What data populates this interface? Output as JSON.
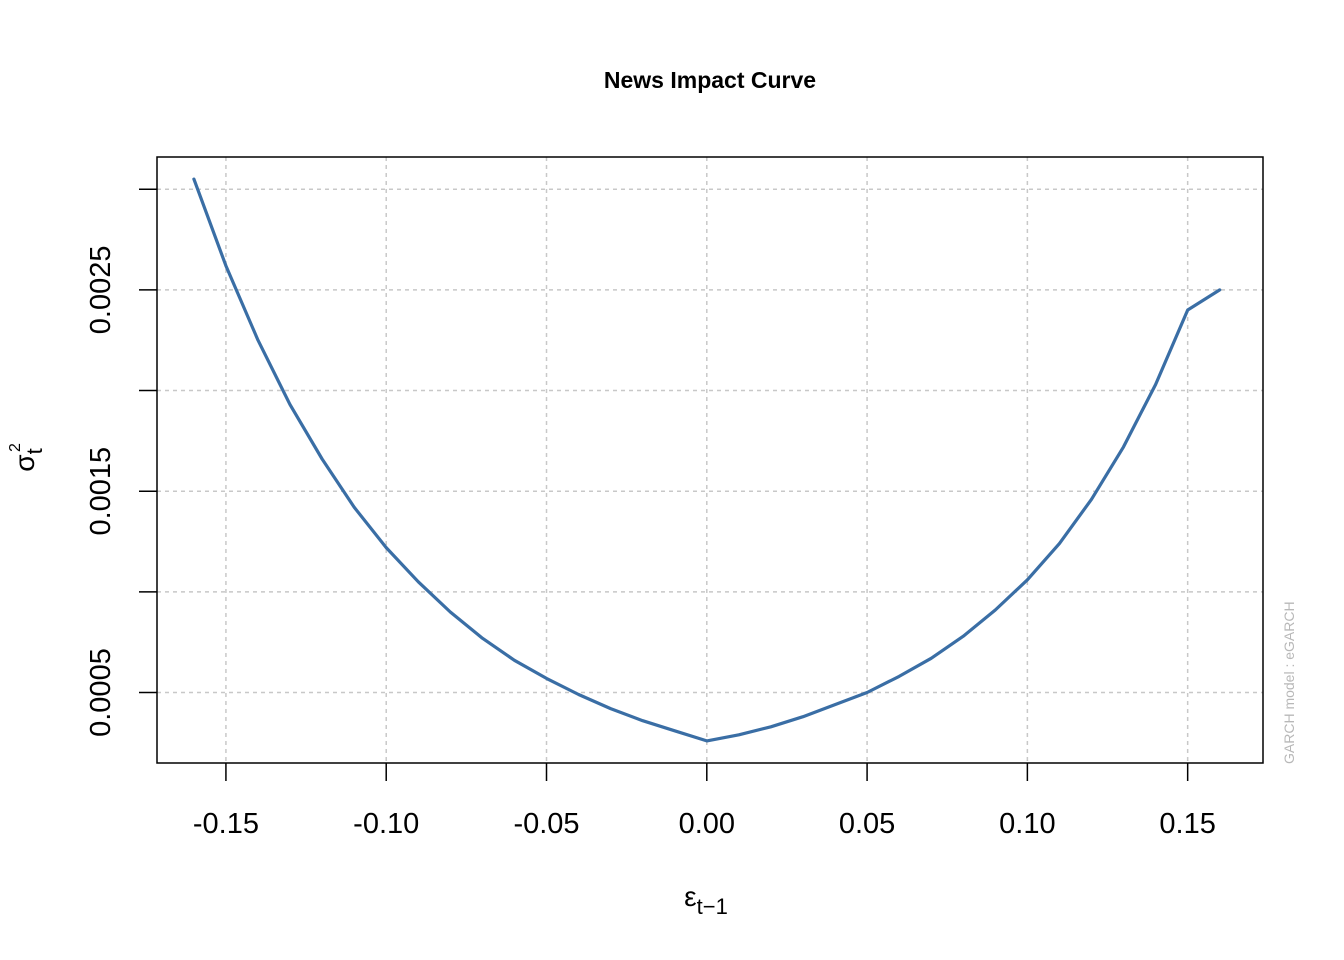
{
  "chart_data": {
    "type": "line",
    "title": "News Impact Curve",
    "xlabel": {
      "main": "ε",
      "sub": "t−1"
    },
    "ylabel": {
      "main": "σ",
      "sup": "2",
      "sub": "t"
    },
    "side_note": "GARCH model :  eGARCH",
    "xlim": [
      -0.1715,
      0.1735
    ],
    "ylim": [
      0.00015,
      0.00316
    ],
    "x_ticks": [
      -0.15,
      -0.1,
      -0.05,
      0.0,
      0.05,
      0.1,
      0.15
    ],
    "x_tick_labels": [
      "-0.15",
      "-0.10",
      "-0.05",
      "0.00",
      "0.05",
      "0.10",
      "0.15"
    ],
    "y_ticks": [
      0.0005,
      0.001,
      0.0015,
      0.002,
      0.0025,
      0.003
    ],
    "y_tick_labels": [
      "0.0005",
      "",
      "0.0015",
      "",
      "0.0025",
      ""
    ],
    "grid": true,
    "series": [
      {
        "color": "#3a6ea5",
        "x": [
          -0.16,
          -0.15,
          -0.14,
          -0.13,
          -0.12,
          -0.11,
          -0.1,
          -0.09,
          -0.08,
          -0.07,
          -0.06,
          -0.05,
          -0.04,
          -0.03,
          -0.02,
          -0.01,
          0.0,
          0.01,
          0.02,
          0.03,
          0.04,
          0.05,
          0.06,
          0.07,
          0.08,
          0.09,
          0.1,
          0.11,
          0.12,
          0.13,
          0.14,
          0.15,
          0.16
        ],
        "y": [
          0.00305,
          0.00262,
          0.00225,
          0.00193,
          0.00166,
          0.00142,
          0.00122,
          0.00105,
          0.0009,
          0.00077,
          0.00066,
          0.00057,
          0.00049,
          0.00042,
          0.00036,
          0.00031,
          0.00026,
          0.00029,
          0.00033,
          0.00038,
          0.00044,
          0.0005,
          0.00058,
          0.00067,
          0.00078,
          0.00091,
          0.00106,
          0.00124,
          0.00146,
          0.00172,
          0.00203,
          0.0024,
          0.0025
        ]
      }
    ]
  }
}
